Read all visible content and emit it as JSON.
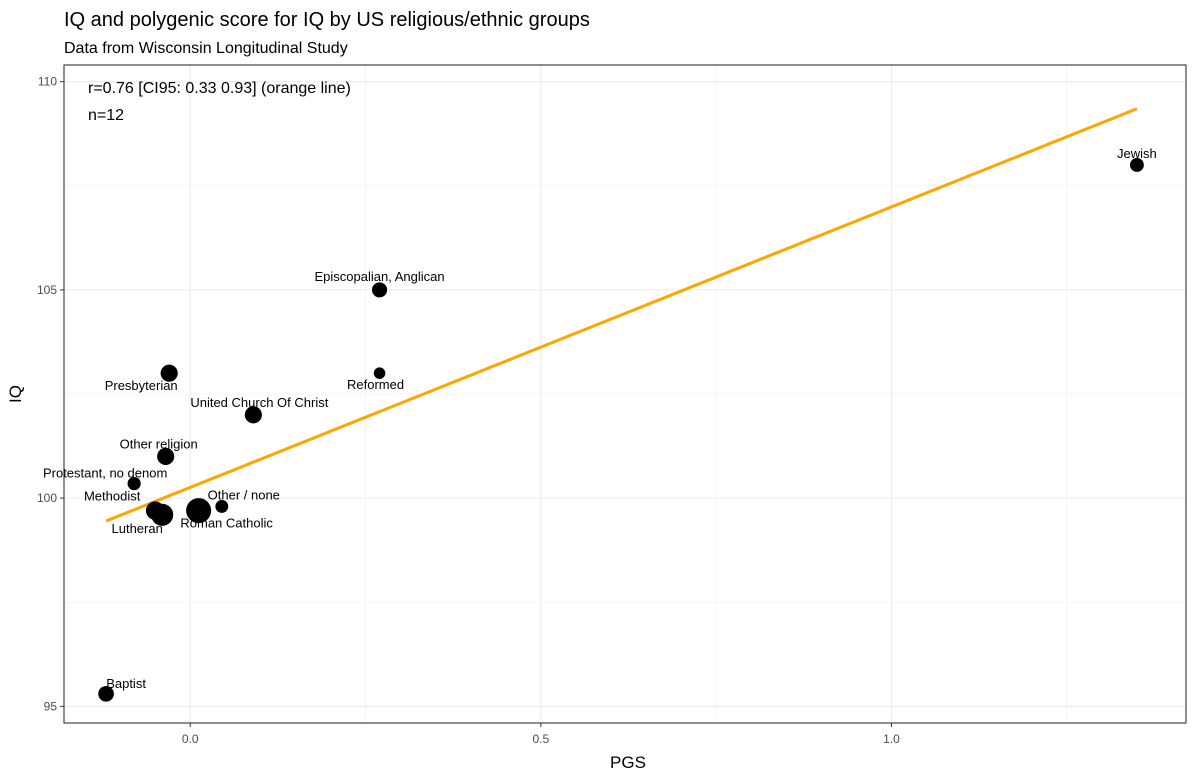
{
  "chart_data": {
    "type": "scatter",
    "title": "IQ and polygenic score for IQ by US religious/ethnic groups",
    "subtitle": "Data from Wisconsin Longitudinal Study",
    "xlabel": "PGS",
    "ylabel": "IQ",
    "xlim": [
      -0.18,
      1.42
    ],
    "ylim": [
      94.6,
      110.4
    ],
    "x_ticks": [
      0.0,
      0.5,
      1.0
    ],
    "x_tick_labels": [
      "0.0",
      "0.5",
      "1.0"
    ],
    "y_ticks": [
      95,
      100,
      105,
      110
    ],
    "y_tick_labels": [
      "95",
      "100",
      "105",
      "110"
    ],
    "grid": true,
    "annotations": [
      "r=0.76 [CI95: 0.33 0.93] (orange line)",
      "n=12"
    ],
    "fit_line": {
      "color": "#FFA500",
      "x": [
        -0.12,
        1.35
      ],
      "y": [
        99.45,
        109.35
      ]
    },
    "points": [
      {
        "label": "Jewish",
        "x": 1.35,
        "y": 108.0,
        "size": 1.2
      },
      {
        "label": "Episcopalian, Anglican",
        "x": 0.27,
        "y": 105.0,
        "size": 1.6
      },
      {
        "label": "Reformed",
        "x": 0.27,
        "y": 103.0,
        "size": 0.6
      },
      {
        "label": "Presbyterian",
        "x": -0.03,
        "y": 103.0,
        "size": 2.4
      },
      {
        "label": "United Church Of Christ",
        "x": 0.09,
        "y": 102.0,
        "size": 2.4
      },
      {
        "label": "Other religion",
        "x": -0.035,
        "y": 101.0,
        "size": 2.4
      },
      {
        "label": "Protestant, no denom",
        "x": -0.08,
        "y": 100.35,
        "size": 1.0
      },
      {
        "label": "Other / none",
        "x": 0.045,
        "y": 99.8,
        "size": 0.9
      },
      {
        "label": "Methodist",
        "x": -0.05,
        "y": 99.7,
        "size": 3.0
      },
      {
        "label": "Lutheran",
        "x": -0.04,
        "y": 99.6,
        "size": 5.0
      },
      {
        "label": "Roman Catholic",
        "x": 0.012,
        "y": 99.7,
        "size": 7.0
      },
      {
        "label": "Baptist",
        "x": -0.12,
        "y": 95.3,
        "size": 1.8
      }
    ]
  }
}
